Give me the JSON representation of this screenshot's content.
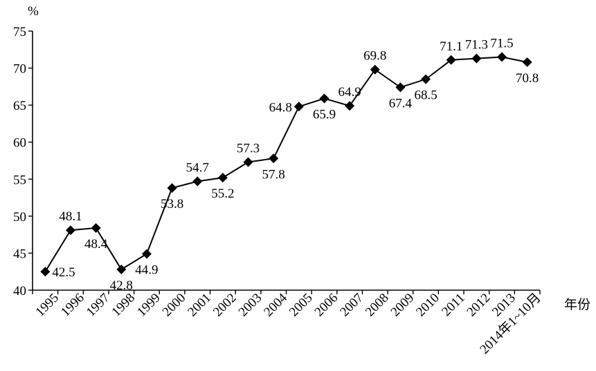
{
  "chart_data": {
    "type": "line",
    "title": "",
    "ylabel": "%",
    "xlabel": "年份",
    "ylim": [
      40,
      75
    ],
    "yticks": [
      40,
      45,
      50,
      55,
      60,
      65,
      70,
      75
    ],
    "grid": false,
    "legend": "none",
    "categories": [
      "1995",
      "1996",
      "1997",
      "1998",
      "1999",
      "2000",
      "2001",
      "2002",
      "2003",
      "2004",
      "2005",
      "2006",
      "2007",
      "2008",
      "2009",
      "2010",
      "2011",
      "2012",
      "2013",
      "2014年1~10月"
    ],
    "series": [
      {
        "values": [
          42.5,
          48.1,
          48.4,
          42.8,
          44.9,
          53.8,
          54.7,
          55.2,
          57.3,
          57.8,
          64.8,
          65.9,
          64.9,
          69.8,
          67.4,
          68.5,
          71.1,
          71.3,
          71.5,
          70.8
        ],
        "label_side": [
          "right",
          "above",
          "below",
          "below",
          "below",
          "below",
          "above",
          "below",
          "above",
          "below",
          "left",
          "below",
          "above",
          "above",
          "below",
          "below",
          "above",
          "above",
          "above",
          "below"
        ]
      }
    ],
    "colors": {
      "line": "#000000",
      "marker": "#000000",
      "axis": "#000000"
    }
  }
}
